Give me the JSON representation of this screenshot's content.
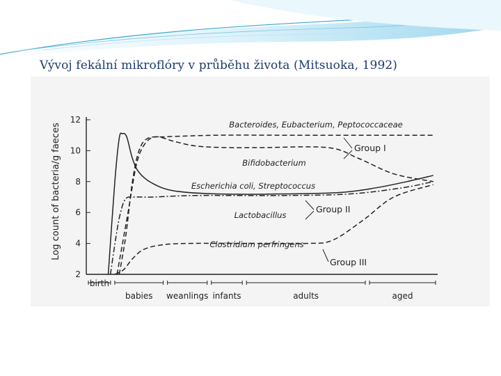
{
  "slide": {
    "title": "Vývoj fekální mikroflóry v průběhu života (Mitsuoka, 1992)"
  },
  "colors": {
    "title": "#1f3a6e",
    "banner_light": "#dff3fb",
    "banner_mid": "#9fd8ee",
    "banner_dark": "#3ea6d0",
    "figure_bg": "#f4f4f4",
    "ink": "#222222"
  },
  "chart_data": {
    "type": "line",
    "title": "",
    "ylabel": "Log count of bacteria/g faeces",
    "xlabel": "",
    "ylim": [
      2,
      12
    ],
    "yticks": [
      2,
      4,
      6,
      8,
      10,
      12
    ],
    "grid": false,
    "x_stages": [
      "birth",
      "babies",
      "weanlings",
      "infants",
      "adults",
      "aged"
    ],
    "x_stage_ranges": [
      [
        0,
        0.6
      ],
      [
        0.6,
        1.8
      ],
      [
        1.8,
        2.8
      ],
      [
        2.8,
        3.6
      ],
      [
        3.6,
        6.4
      ],
      [
        6.4,
        8.0
      ]
    ],
    "xlim": [
      0,
      8.0
    ],
    "series": [
      {
        "name": "Bacteroides, Eubacterium, Peptococcaceae",
        "style": "dashed",
        "x": [
          0.75,
          0.9,
          1.05,
          1.2,
          1.4,
          1.8,
          3.0,
          4.5,
          6.5,
          7.4,
          7.9
        ],
        "y": [
          2,
          4.5,
          8.0,
          10.0,
          10.8,
          10.9,
          11.0,
          11.0,
          11.0,
          11.0,
          11.0
        ]
      },
      {
        "name": "Bifidobacterium",
        "style": "dashed",
        "x": [
          0.7,
          0.95,
          1.15,
          1.35,
          1.6,
          2.0,
          2.5,
          3.2,
          4.0,
          5.5,
          6.2,
          7.0,
          7.9
        ],
        "y": [
          2,
          6.0,
          9.2,
          10.5,
          10.9,
          10.6,
          10.3,
          10.2,
          10.2,
          10.2,
          9.5,
          8.5,
          8.0
        ]
      },
      {
        "name": "Escherichia coli, Streptococcus",
        "style": "solid",
        "x": [
          0.5,
          0.65,
          0.75,
          0.82,
          0.92,
          1.05,
          1.2,
          1.5,
          2.0,
          3.0,
          4.5,
          5.8,
          6.6,
          7.3,
          7.9
        ],
        "y": [
          2,
          8.0,
          10.8,
          11.1,
          10.9,
          9.5,
          8.6,
          7.9,
          7.4,
          7.2,
          7.2,
          7.3,
          7.6,
          8.0,
          8.4
        ]
      },
      {
        "name": "Lactobacillus",
        "style": "dashdot",
        "x": [
          0.55,
          0.68,
          0.78,
          0.9,
          1.1,
          1.5,
          2.5,
          4.5,
          6.0,
          7.2,
          7.9
        ],
        "y": [
          2,
          4.5,
          6.0,
          6.9,
          7.0,
          7.0,
          7.1,
          7.1,
          7.2,
          7.6,
          8.0
        ]
      },
      {
        "name": "Clostridium perfringens",
        "style": "dashed",
        "x": [
          0.65,
          0.85,
          1.05,
          1.3,
          1.7,
          2.3,
          3.5,
          5.0,
          5.6,
          6.3,
          7.0,
          7.9
        ],
        "y": [
          2,
          2.3,
          3.0,
          3.6,
          3.9,
          4.0,
          4.0,
          4.0,
          4.2,
          5.5,
          7.0,
          7.8
        ]
      }
    ],
    "group_labels": [
      {
        "text": "Group I"
      },
      {
        "text": "Group II"
      },
      {
        "text": "Group III"
      }
    ]
  }
}
